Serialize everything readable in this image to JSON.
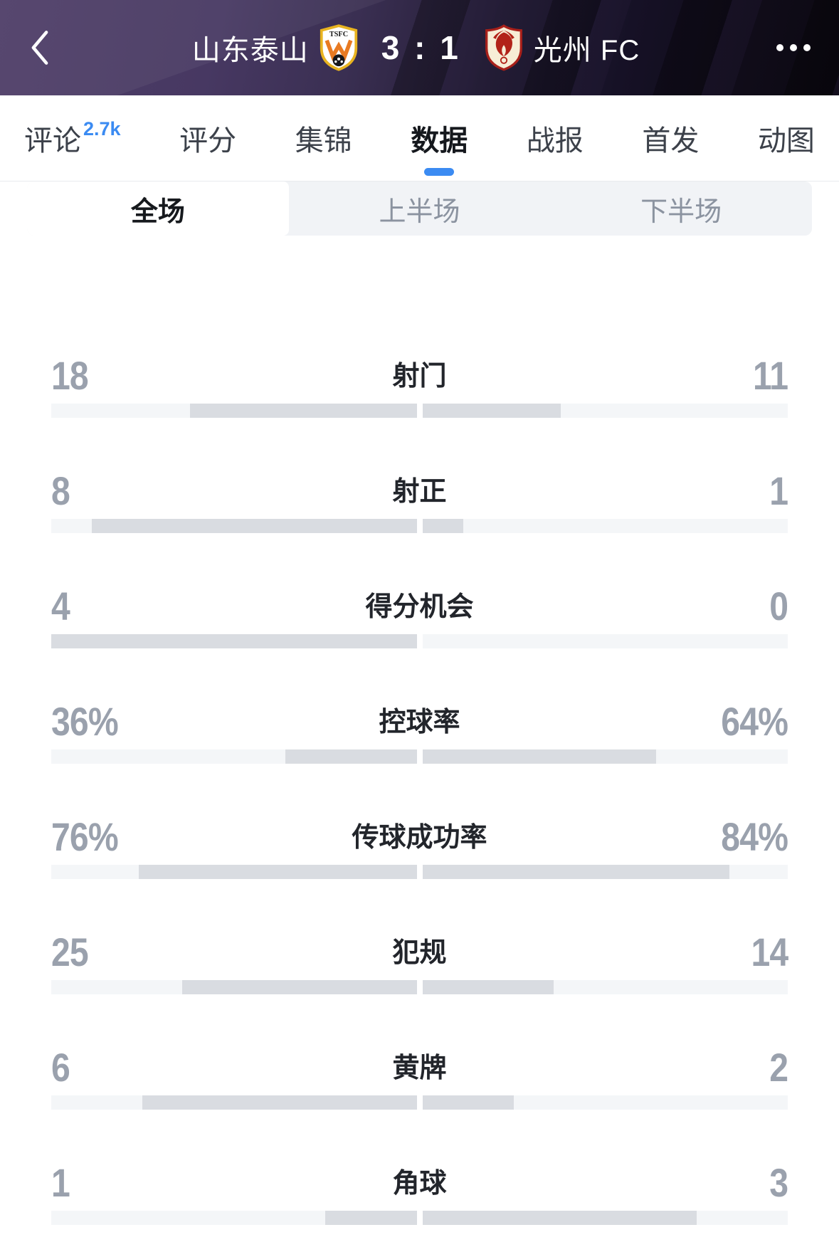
{
  "header": {
    "home_team": "山东泰山",
    "away_team": "光州 FC",
    "score": "3 : 1",
    "back_icon": "chevron-left",
    "more_icon": "ellipsis"
  },
  "tabs": {
    "items": [
      {
        "label": "评论",
        "badge": "2.7k",
        "active": false
      },
      {
        "label": "评分",
        "active": false
      },
      {
        "label": "集锦",
        "active": false
      },
      {
        "label": "数据",
        "active": true
      },
      {
        "label": "战报",
        "active": false
      },
      {
        "label": "首发",
        "active": false
      },
      {
        "label": "动图",
        "active": false
      }
    ]
  },
  "segments": {
    "items": [
      {
        "label": "全场",
        "active": true
      },
      {
        "label": "上半场",
        "active": false
      },
      {
        "label": "下半场",
        "active": false
      }
    ]
  },
  "chart_data": {
    "type": "bar",
    "title": "全场数据 山东泰山 vs 光州FC",
    "categories": [
      "射门",
      "射正",
      "得分机会",
      "控球率",
      "传球成功率",
      "犯规",
      "黄牌",
      "角球"
    ],
    "series": [
      {
        "name": "山东泰山",
        "values": [
          18,
          8,
          4,
          36,
          76,
          25,
          6,
          1
        ]
      },
      {
        "name": "光州FC",
        "values": [
          11,
          1,
          0,
          64,
          84,
          14,
          2,
          3
        ]
      }
    ],
    "percent_rows": [
      "控球率",
      "传球成功率"
    ],
    "legend_position": "none",
    "grid": false
  },
  "stats": [
    {
      "label": "射门",
      "home": 18,
      "away": 11,
      "percent": false
    },
    {
      "label": "射正",
      "home": 8,
      "away": 1,
      "percent": false
    },
    {
      "label": "得分机会",
      "home": 4,
      "away": 0,
      "percent": false
    },
    {
      "label": "控球率",
      "home": 36,
      "away": 64,
      "percent": true
    },
    {
      "label": "传球成功率",
      "home": 76,
      "away": 84,
      "percent": true
    },
    {
      "label": "犯规",
      "home": 25,
      "away": 14,
      "percent": false
    },
    {
      "label": "黄牌",
      "home": 6,
      "away": 2,
      "percent": false
    },
    {
      "label": "角球",
      "home": 1,
      "away": 3,
      "percent": false
    }
  ],
  "colors": {
    "accent_blue": "#3b8bf2",
    "header_purple": "#473862",
    "header_dark": "#0c0912",
    "bar_track": "#f4f6f8",
    "bar_fill": "#d9dce1",
    "number_gray": "#9aa1ad",
    "label_dark": "#22252b",
    "home_crest_gold": "#e8b320",
    "home_crest_orange": "#e87a22",
    "away_crest_red": "#a8201a",
    "away_crest_cream": "#f7edd6"
  }
}
